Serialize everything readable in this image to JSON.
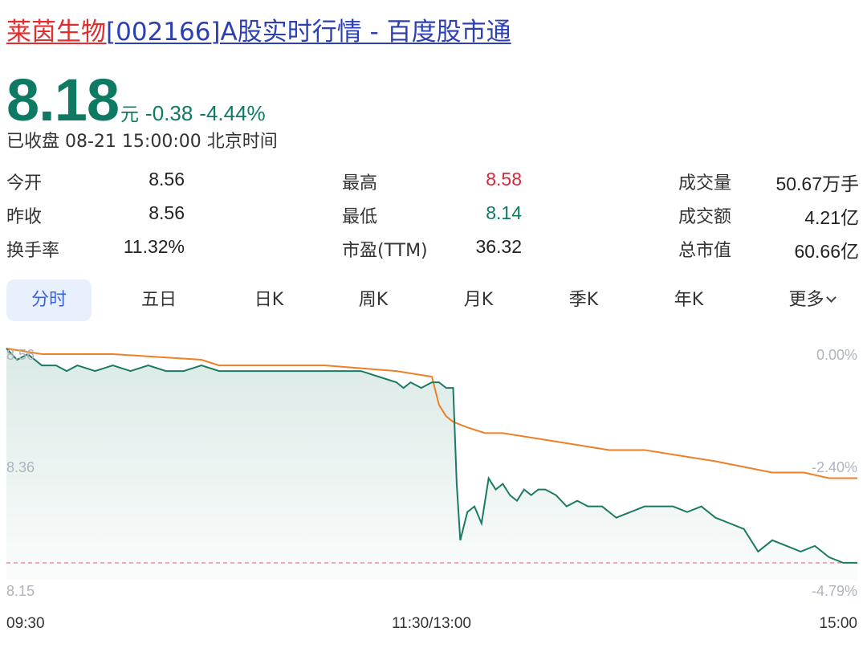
{
  "header": {
    "name": "莱茵生物",
    "rest": "[002166]A股实时行情 - 百度股市通"
  },
  "quote": {
    "price": "8.18",
    "unit": "元",
    "change": "-0.38",
    "change_pct": "-4.44%",
    "status": "已收盘 08-21 15:00:00 北京时间"
  },
  "stats": [
    [
      {
        "label": "今开",
        "value": "8.56",
        "tone": ""
      },
      {
        "label": "最高",
        "value": "8.58",
        "tone": "up"
      },
      {
        "label": "成交量",
        "value": "50.67万手",
        "tone": ""
      }
    ],
    [
      {
        "label": "昨收",
        "value": "8.56",
        "tone": ""
      },
      {
        "label": "最低",
        "value": "8.14",
        "tone": "down"
      },
      {
        "label": "成交额",
        "value": "4.21亿",
        "tone": ""
      }
    ],
    [
      {
        "label": "换手率",
        "value": "11.32%",
        "tone": ""
      },
      {
        "label": "市盈(TTM)",
        "value": "36.32",
        "tone": ""
      },
      {
        "label": "总市值",
        "value": "60.66亿",
        "tone": ""
      }
    ]
  ],
  "tabs": [
    "分时",
    "五日",
    "日K",
    "周K",
    "月K",
    "季K",
    "年K",
    "更多"
  ],
  "active_tab": 0,
  "colors": {
    "price_line": "#1b7a63",
    "avg_line": "#ef7f25",
    "baseline": "#e9878c",
    "up": "#d8283a",
    "down": "#0f7a63",
    "accent": "#3a63d8"
  },
  "chart_data": {
    "type": "line",
    "ylim": [
      8.15,
      8.56
    ],
    "y_ticks_left": [
      "8.56",
      "8.36",
      "8.15"
    ],
    "y_ticks_right": [
      "0.00%",
      "-2.40%",
      "-4.79%"
    ],
    "x_ticks": [
      "09:30",
      "11:30/13:00",
      "15:00"
    ],
    "reference_line": 8.18,
    "series": [
      {
        "key": "price",
        "x": [
          0,
          3,
          6,
          10,
          14,
          17,
          20,
          25,
          30,
          35,
          40,
          45,
          50,
          55,
          60,
          65,
          70,
          75,
          80,
          85,
          90,
          95,
          100,
          105,
          110,
          112,
          114,
          117,
          120,
          122,
          124,
          126,
          127,
          128,
          130,
          132,
          134,
          136,
          138,
          140,
          142,
          144,
          146,
          148,
          150,
          152,
          155,
          158,
          161,
          164,
          168,
          172,
          176,
          180,
          184,
          188,
          192,
          196,
          200,
          204,
          208,
          212,
          216,
          220,
          224,
          228,
          232,
          236,
          240
        ],
        "y": [
          8.56,
          8.54,
          8.55,
          8.53,
          8.53,
          8.52,
          8.53,
          8.52,
          8.53,
          8.52,
          8.53,
          8.52,
          8.52,
          8.53,
          8.52,
          8.52,
          8.52,
          8.52,
          8.52,
          8.52,
          8.52,
          8.52,
          8.52,
          8.51,
          8.5,
          8.49,
          8.5,
          8.49,
          8.5,
          8.5,
          8.49,
          8.49,
          8.32,
          8.22,
          8.27,
          8.28,
          8.25,
          8.33,
          8.31,
          8.32,
          8.3,
          8.29,
          8.31,
          8.3,
          8.31,
          8.31,
          8.3,
          8.28,
          8.29,
          8.28,
          8.28,
          8.26,
          8.27,
          8.28,
          8.28,
          8.28,
          8.27,
          8.28,
          8.26,
          8.25,
          8.24,
          8.2,
          8.22,
          8.21,
          8.2,
          8.21,
          8.19,
          8.18,
          8.18
        ]
      },
      {
        "key": "avg",
        "x": [
          0,
          10,
          30,
          55,
          60,
          90,
          110,
          120,
          122,
          124,
          126,
          130,
          135,
          140,
          150,
          160,
          170,
          180,
          190,
          200,
          208,
          216,
          225,
          232,
          240
        ],
        "y": [
          8.56,
          8.55,
          8.55,
          8.54,
          8.53,
          8.53,
          8.52,
          8.51,
          8.46,
          8.44,
          8.43,
          8.42,
          8.41,
          8.41,
          8.4,
          8.39,
          8.38,
          8.38,
          8.37,
          8.36,
          8.35,
          8.34,
          8.34,
          8.33,
          8.33
        ]
      }
    ]
  }
}
